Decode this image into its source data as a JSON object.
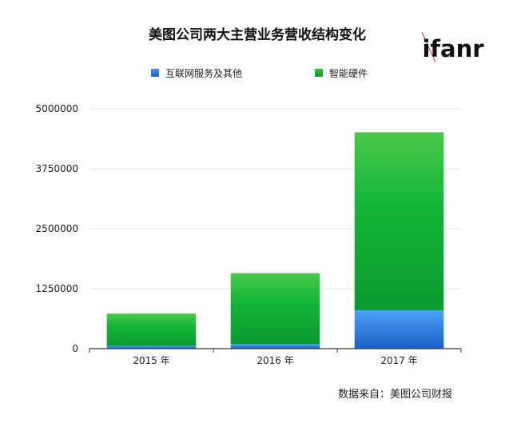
{
  "watermark": "ifanr",
  "chart_data": {
    "type": "bar",
    "stacked": true,
    "title": "美图公司两大主营业务营收结构变化",
    "categories": [
      "2015 年",
      "2016 年",
      "2017 年"
    ],
    "series": [
      {
        "name": "互联网服务及其他",
        "values": [
          60000,
          95000,
          800000
        ],
        "color": "#2f86e6"
      },
      {
        "name": "智能硬件",
        "values": [
          670000,
          1480000,
          3710000
        ],
        "color": "#1fb53a"
      }
    ],
    "yticks": [
      0,
      1250000,
      2500000,
      3750000,
      5000000
    ],
    "ylim": [
      0,
      5000000
    ],
    "grid": true,
    "legend_position": "top",
    "source": "数据来自：美图公司财报"
  }
}
